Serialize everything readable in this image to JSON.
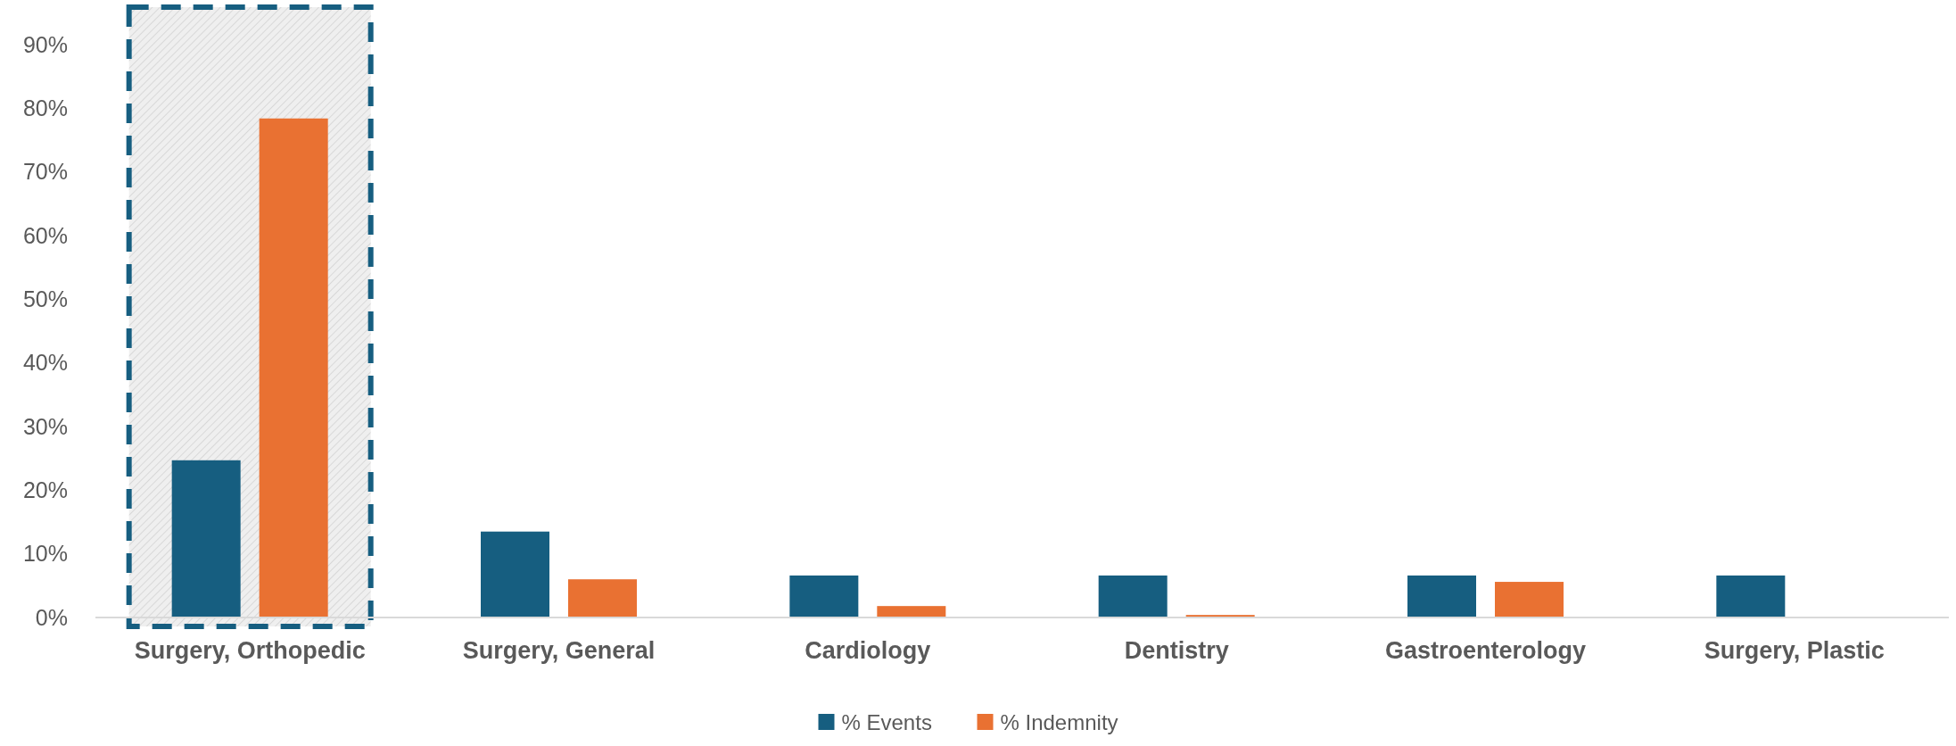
{
  "chart_data": {
    "type": "bar",
    "categories": [
      "Surgery, Orthopedic",
      "Surgery, General",
      "Cardiology",
      "Dentistry",
      "Gastroenterology",
      "Surgery, Plastic"
    ],
    "series": [
      {
        "name": "% Events",
        "color": "#165e80",
        "values": [
          24.7,
          13.5,
          6.6,
          6.6,
          6.6,
          6.6
        ]
      },
      {
        "name": "% Indemnity",
        "color": "#e97132",
        "values": [
          78.4,
          6.0,
          1.8,
          0.4,
          5.6,
          0
        ]
      }
    ],
    "ylim": [
      0,
      90
    ],
    "yticks": [
      {
        "value": 0,
        "label": "0%"
      },
      {
        "value": 10,
        "label": "10%"
      },
      {
        "value": 20,
        "label": "20%"
      },
      {
        "value": 30,
        "label": "30%"
      },
      {
        "value": 40,
        "label": "40%"
      },
      {
        "value": 50,
        "label": "50%"
      },
      {
        "value": 60,
        "label": "60%"
      },
      {
        "value": 70,
        "label": "70%"
      },
      {
        "value": 80,
        "label": "80%"
      },
      {
        "value": 90,
        "label": "90%"
      }
    ],
    "bands": [
      {
        "axis": "x",
        "from": "Surgery, Orthopedic",
        "to": "Surgery, Orthopedic",
        "color": "#165e80"
      }
    ],
    "grid": false,
    "legend": "bottom"
  }
}
